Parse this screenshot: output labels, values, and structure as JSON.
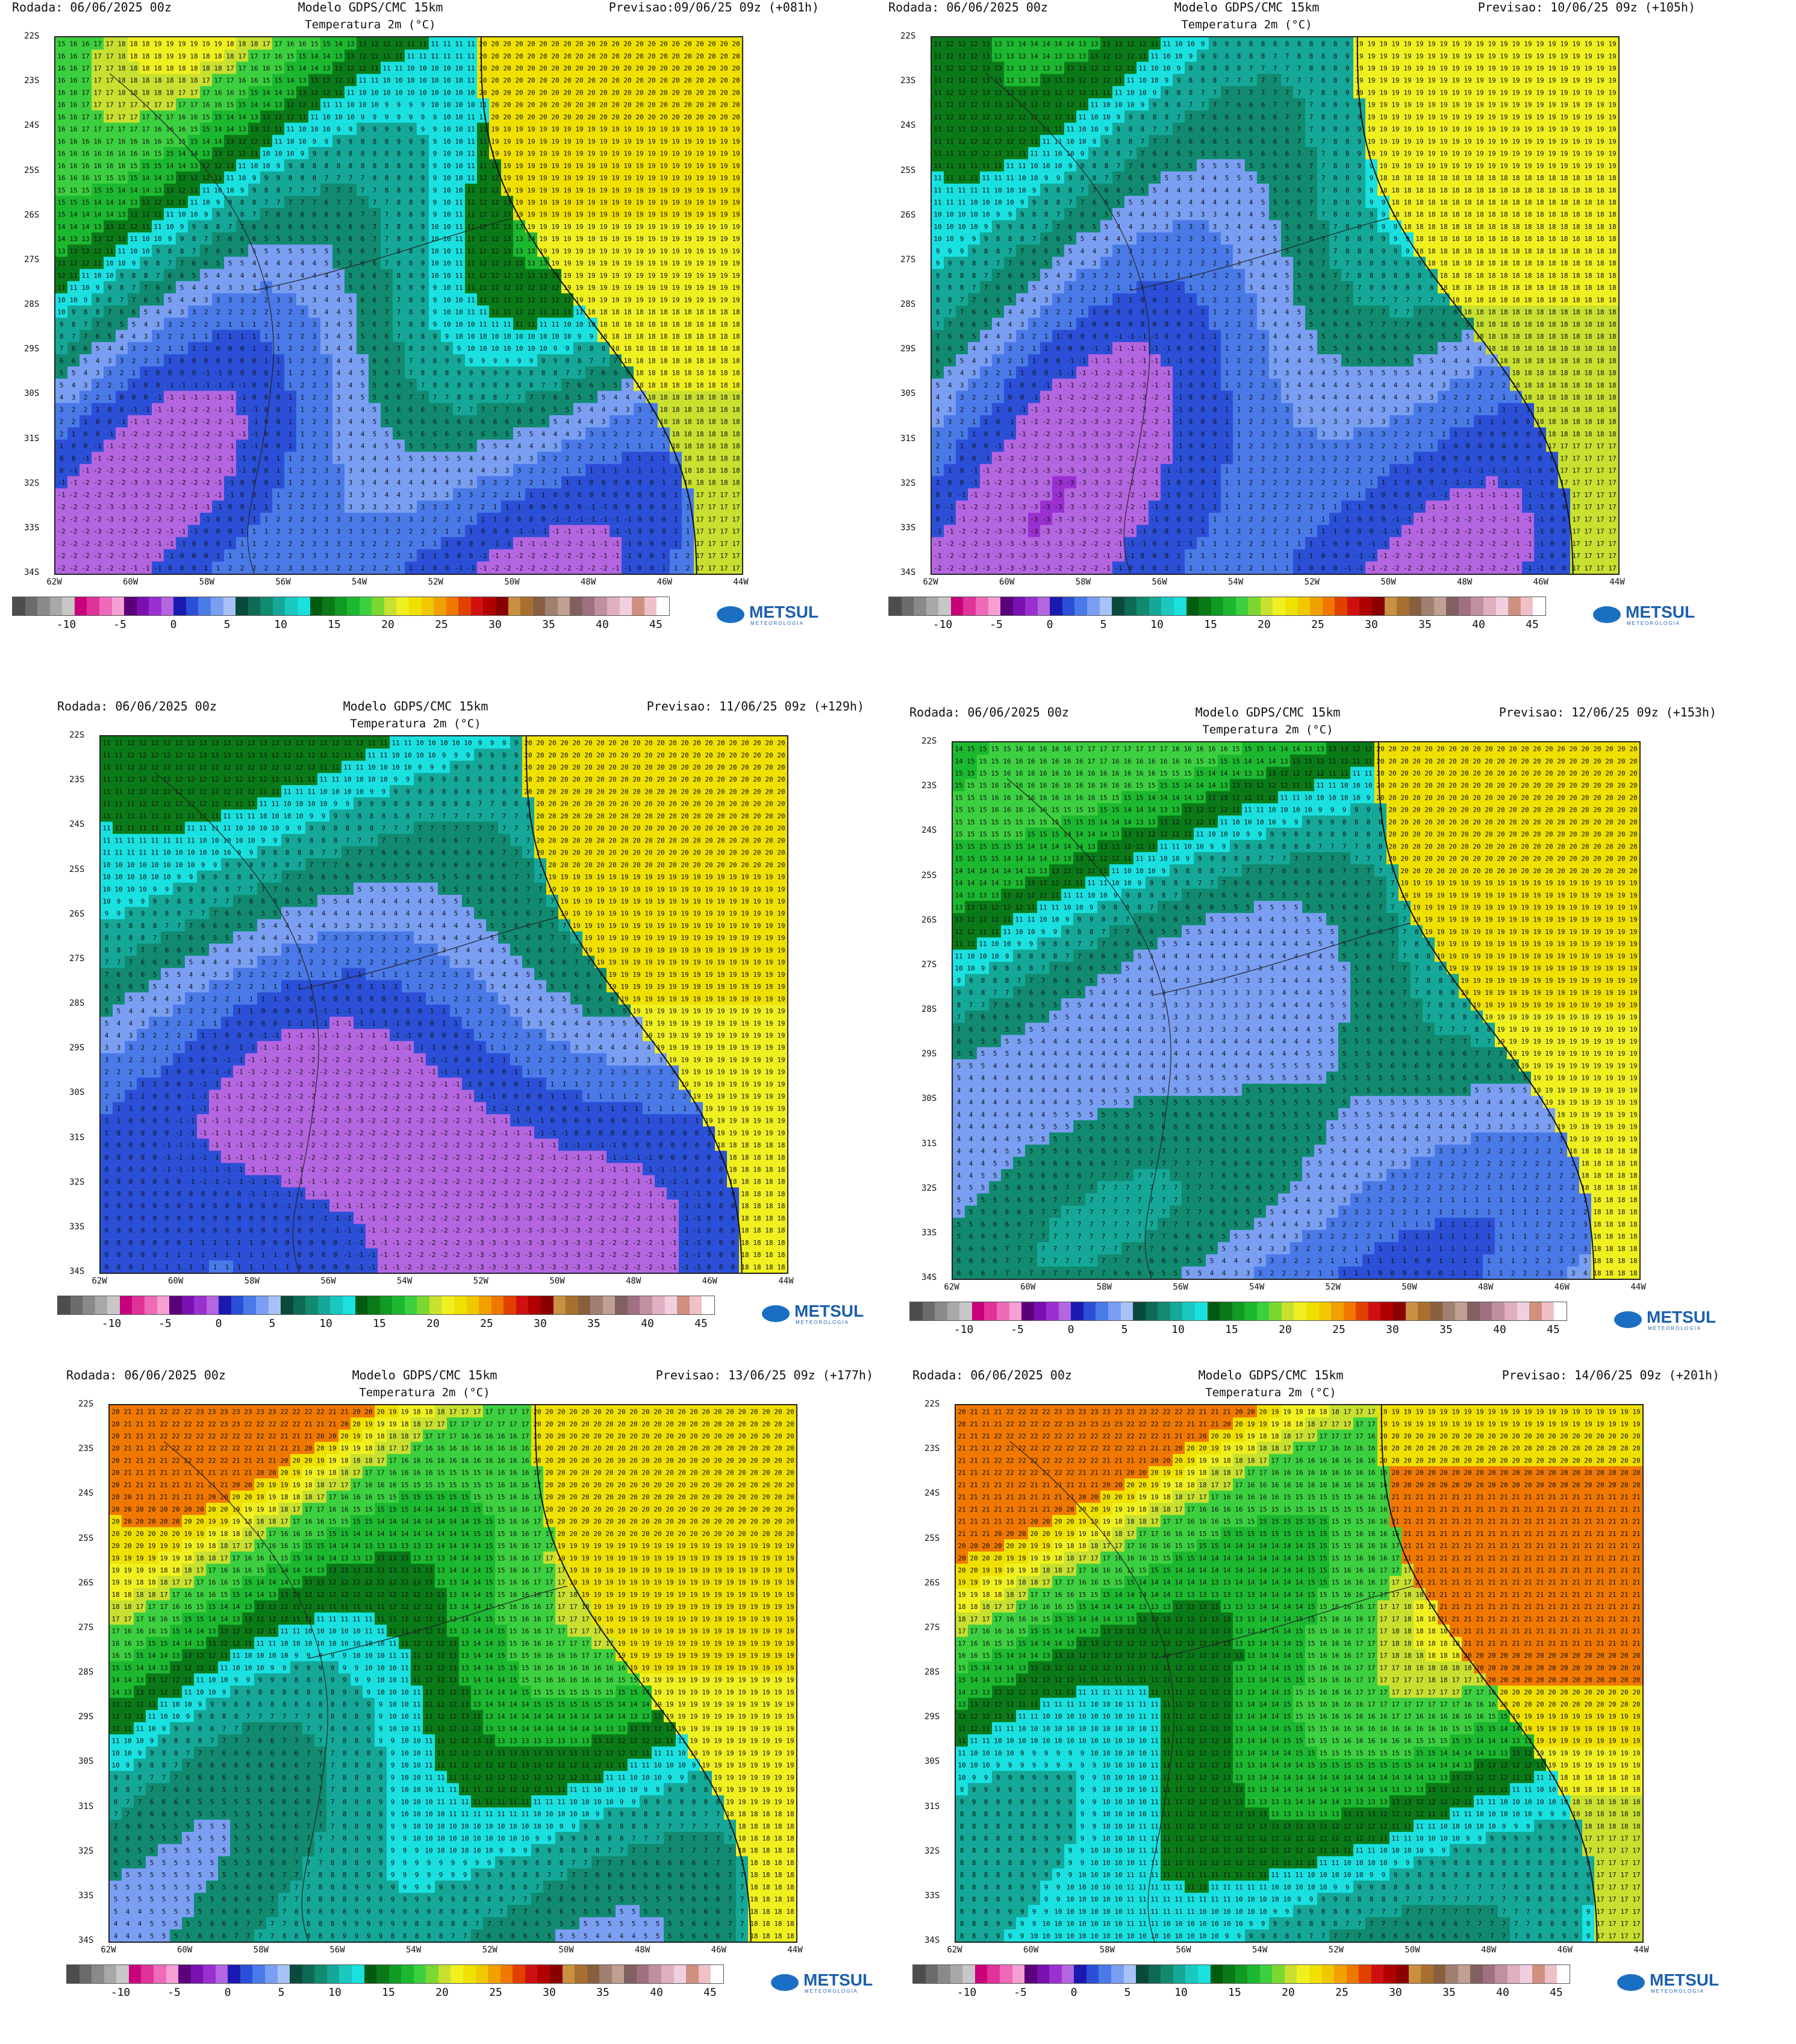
{
  "legend": {
    "colors": [
      "#4d4d4d",
      "#6b6b6b",
      "#8a8a8a",
      "#a8a8a8",
      "#c7c7c7",
      "#c8007a",
      "#e0339a",
      "#ef6ab8",
      "#f4a0d2",
      "#5a007a",
      "#7a10b0",
      "#9a30d0",
      "#b465e0",
      "#1a1ab0",
      "#2b4fd6",
      "#4a7ae8",
      "#7a9ff2",
      "#a8c2f8",
      "#0a4a3a",
      "#0e6a55",
      "#118a70",
      "#15a898",
      "#1ac8c0",
      "#1ae0e0",
      "#005a10",
      "#0a7a18",
      "#119a24",
      "#1cb830",
      "#3cd040",
      "#7ad830",
      "#c8e030",
      "#f0f020",
      "#f0e000",
      "#f0c800",
      "#f0a000",
      "#f07800",
      "#e04000",
      "#d01010",
      "#b00000",
      "#8a0000",
      "#c89040",
      "#a87030",
      "#886040",
      "#a08070",
      "#c0a090",
      "#806060",
      "#a07080",
      "#c090a0",
      "#e0b0c0",
      "#f0d0e0",
      "#d09080",
      "#f0c0c8",
      "#ffffff"
    ],
    "ticks": [
      "-10",
      "-5",
      "0",
      "5",
      "10",
      "15",
      "20",
      "25",
      "30",
      "35",
      "40",
      "45"
    ]
  },
  "logo": {
    "text": "METSUL",
    "tagline": "METEOROLOGIA"
  },
  "axes": {
    "lat_labels": [
      "22S",
      "23S",
      "24S",
      "25S",
      "26S",
      "27S",
      "28S",
      "29S",
      "30S",
      "31S",
      "32S",
      "33S",
      "34S"
    ],
    "lon_labels": [
      "62W",
      "60W",
      "58W",
      "56W",
      "54W",
      "52W",
      "50W",
      "48W",
      "46W",
      "44W"
    ]
  },
  "panels": [
    {
      "rodada": "Rodada: 06/06/2025 00z",
      "modelo": "Modelo GDPS/CMC 15km",
      "subtitle": "Temperatura 2m (°C)",
      "previsao": "Previsao:09/06/25 09z (+081h)",
      "pattern": 1
    },
    {
      "rodada": "Rodada: 06/06/2025 00z",
      "modelo": "Modelo GDPS/CMC 15km",
      "subtitle": "Temperatura 2m (°C)",
      "previsao": "Previsao: 10/06/25 09z (+105h)",
      "pattern": 2
    },
    {
      "rodada": "Rodada: 06/06/2025 00z",
      "modelo": "Modelo GDPS/CMC 15km",
      "subtitle": "Temperatura 2m (°C)",
      "previsao": "Previsao: 11/06/25 09z (+129h)",
      "pattern": 3
    },
    {
      "rodada": "Rodada: 06/06/2025 00z",
      "modelo": "Modelo GDPS/CMC 15km",
      "subtitle": "Temperatura 2m (°C)",
      "previsao": "Previsao: 12/06/25 09z (+153h)",
      "pattern": 4
    },
    {
      "rodada": "Rodada: 06/06/2025 00z",
      "modelo": "Modelo GDPS/CMC 15km",
      "subtitle": "Temperatura 2m (°C)",
      "previsao": "Previsao: 13/06/25 09z (+177h)",
      "pattern": 5
    },
    {
      "rodada": "Rodada: 06/06/2025 00z",
      "modelo": "Modelo GDPS/CMC 15km",
      "subtitle": "Temperatura 2m (°C)",
      "previsao": "Previsao: 14/06/25 09z (+201h)",
      "pattern": 6
    }
  ]
}
